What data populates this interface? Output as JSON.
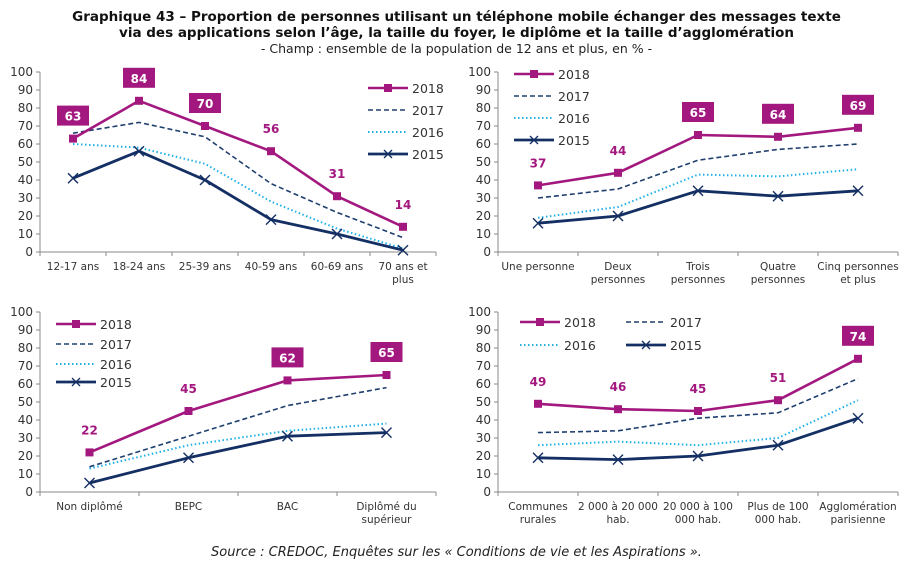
{
  "header": {
    "title_line1": "Graphique 43 – Proportion de personnes utilisant un téléphone mobile échanger des messages texte",
    "title_line2": "via des applications selon l’âge, la taille du foyer, le diplôme et la taille d’agglomération",
    "subtitle": "- Champ : ensemble de la population de 12 ans et plus, en % -"
  },
  "footer": {
    "source": "Source : CREDOC, Enquêtes sur les « Conditions de vie et les Aspirations »."
  },
  "colors": {
    "2018": "#a3187f",
    "2017": "#1f3f6e",
    "2016": "#1fb0e8",
    "2015": "#142f63",
    "axis": "#888888",
    "label_text_white": "#ffffff"
  },
  "chart_data": [
    {
      "type": "line",
      "title": "Âge",
      "categories": [
        "12-17 ans",
        "18-24 ans",
        "25-39 ans",
        "40-59 ans",
        "60-69 ans",
        "70 ans et plus"
      ],
      "ylim": [
        0,
        100
      ],
      "yticks": [
        0,
        10,
        20,
        30,
        40,
        50,
        60,
        70,
        80,
        90,
        100
      ],
      "legend": "right",
      "series": [
        {
          "name": "2018",
          "values": [
            63,
            84,
            70,
            56,
            31,
            14
          ],
          "labels": [
            "63",
            "84",
            "70",
            "56",
            "31",
            "14"
          ],
          "boxed": [
            true,
            true,
            true,
            false,
            false,
            false
          ]
        },
        {
          "name": "2017",
          "values": [
            66,
            72,
            64,
            38,
            22,
            8
          ]
        },
        {
          "name": "2016",
          "values": [
            60,
            58,
            49,
            28,
            13,
            2
          ]
        },
        {
          "name": "2015",
          "values": [
            41,
            56,
            40,
            18,
            10,
            1
          ]
        }
      ]
    },
    {
      "type": "line",
      "title": "Taille du foyer",
      "categories": [
        "Une personne",
        "Deux personnes",
        "Trois personnes",
        "Quatre personnes",
        "Cinq personnes et plus"
      ],
      "ylim": [
        0,
        100
      ],
      "yticks": [
        0,
        10,
        20,
        30,
        40,
        50,
        60,
        70,
        80,
        90,
        100
      ],
      "legend": "top-left",
      "series": [
        {
          "name": "2018",
          "values": [
            37,
            44,
            65,
            64,
            69
          ],
          "labels": [
            "37",
            "44",
            "65",
            "64",
            "69"
          ],
          "boxed": [
            false,
            false,
            true,
            true,
            true
          ]
        },
        {
          "name": "2017",
          "values": [
            30,
            35,
            51,
            57,
            60
          ]
        },
        {
          "name": "2016",
          "values": [
            19,
            25,
            43,
            42,
            46
          ]
        },
        {
          "name": "2015",
          "values": [
            16,
            20,
            34,
            31,
            34
          ]
        }
      ]
    },
    {
      "type": "line",
      "title": "Diplôme",
      "categories": [
        "Non diplômé",
        "BEPC",
        "BAC",
        "Diplômé du supérieur"
      ],
      "ylim": [
        0,
        100
      ],
      "yticks": [
        0,
        10,
        20,
        30,
        40,
        50,
        60,
        70,
        80,
        90,
        100
      ],
      "legend": "top-left",
      "series": [
        {
          "name": "2018",
          "values": [
            22,
            45,
            62,
            65
          ],
          "labels": [
            "22",
            "45",
            "62",
            "65"
          ],
          "boxed": [
            false,
            false,
            true,
            true
          ]
        },
        {
          "name": "2017",
          "values": [
            14,
            31,
            48,
            58
          ]
        },
        {
          "name": "2016",
          "values": [
            13,
            26,
            34,
            38
          ]
        },
        {
          "name": "2015",
          "values": [
            5,
            19,
            31,
            33
          ]
        }
      ]
    },
    {
      "type": "line",
      "title": "Taille d'agglomération",
      "categories": [
        "Communes rurales",
        "2 000 à 20 000 hab.",
        "20 000 à 100 000 hab.",
        "Plus de 100 000 hab.",
        "Agglomération parisienne"
      ],
      "ylim": [
        0,
        100
      ],
      "yticks": [
        0,
        10,
        20,
        30,
        40,
        50,
        60,
        70,
        80,
        90,
        100
      ],
      "legend": "top (two columns)",
      "series": [
        {
          "name": "2018",
          "values": [
            49,
            46,
            45,
            51,
            74
          ],
          "labels": [
            "49",
            "46",
            "45",
            "51",
            "74"
          ],
          "boxed": [
            false,
            false,
            false,
            false,
            true
          ]
        },
        {
          "name": "2017",
          "values": [
            33,
            34,
            41,
            44,
            63
          ]
        },
        {
          "name": "2016",
          "values": [
            26,
            28,
            26,
            30,
            51
          ]
        },
        {
          "name": "2015",
          "values": [
            19,
            18,
            20,
            26,
            41
          ]
        }
      ]
    }
  ]
}
